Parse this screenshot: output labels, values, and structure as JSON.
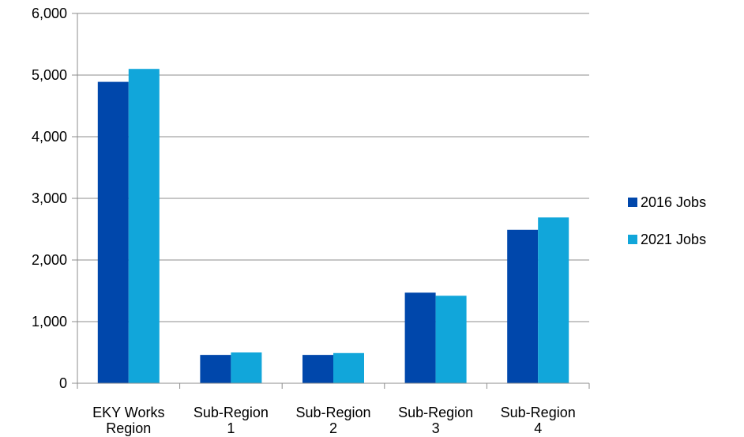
{
  "chart_data": {
    "type": "bar",
    "title": "",
    "xlabel": "",
    "ylabel": "",
    "categories": [
      [
        "EKY Works",
        "Region"
      ],
      [
        "Sub-Region",
        "1"
      ],
      [
        "Sub-Region",
        "2"
      ],
      [
        "Sub-Region",
        "3"
      ],
      [
        "Sub-Region",
        "4"
      ]
    ],
    "series": [
      {
        "name": "2016 Jobs",
        "color": "#0047AB",
        "values": [
          4890,
          460,
          460,
          1470,
          2490
        ]
      },
      {
        "name": "2021 Jobs",
        "color": "#11A6DA",
        "values": [
          5100,
          500,
          490,
          1420,
          2690
        ]
      }
    ],
    "ylim": [
      0,
      6000
    ],
    "yticks": [
      0,
      1000,
      2000,
      3000,
      4000,
      5000,
      6000
    ],
    "ytick_labels": [
      "0",
      "1,000",
      "2,000",
      "3,000",
      "4,000",
      "5,000",
      "6,000"
    ],
    "grid": true,
    "legend": "right"
  }
}
